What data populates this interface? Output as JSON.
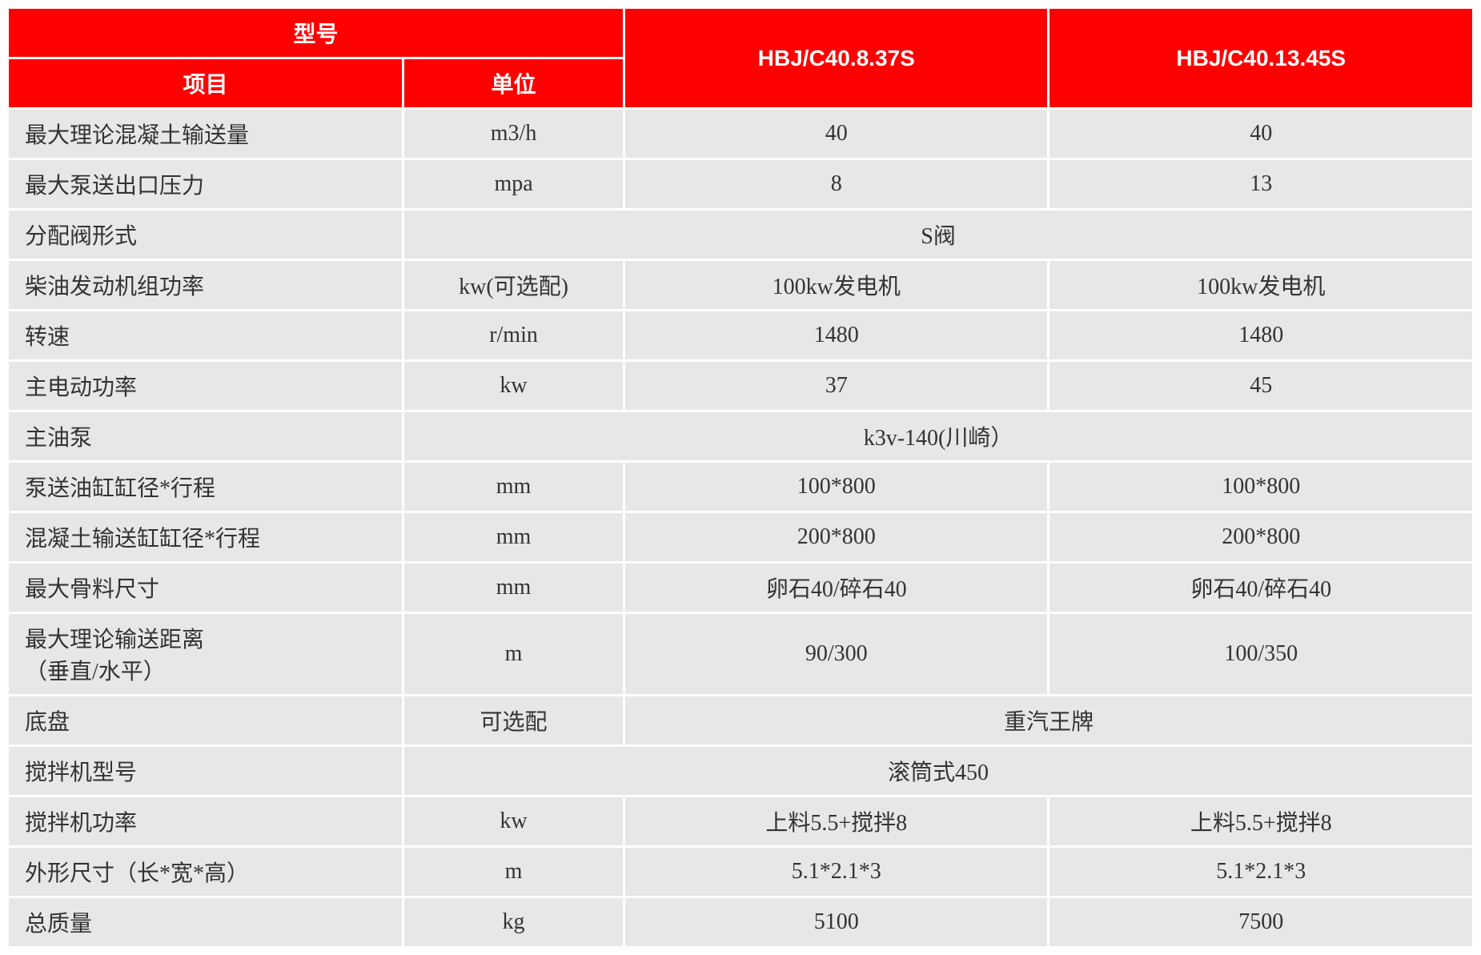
{
  "table": {
    "header": {
      "model_header": "型号",
      "item_header": "项目",
      "unit_header": "单位",
      "model1": "HBJ/C40.8.37S",
      "model2": "HBJ/C40.13.45S"
    },
    "colors": {
      "header_bg": "#ff0000",
      "header_text": "#ffffff",
      "data_bg": "#e7e7e7",
      "data_text": "#333333"
    },
    "rows": [
      {
        "label": "最大理论混凝土输送量",
        "unit": "m3/h",
        "v1": "40",
        "v2": "40"
      },
      {
        "label": "最大泵送出口压力",
        "unit": "mpa",
        "v1": "8",
        "v2": "13"
      },
      {
        "label": "分配阀形式",
        "unit": "",
        "merged": "S阀"
      },
      {
        "label": "柴油发动机组功率",
        "unit": "kw(可选配)",
        "v1": "100kw发电机",
        "v2": "100kw发电机"
      },
      {
        "label": "转速",
        "unit": "r/min",
        "v1": "1480",
        "v2": "1480"
      },
      {
        "label": "主电动功率",
        "unit": "kw",
        "v1": "37",
        "v2": "45"
      },
      {
        "label": "主油泵",
        "unit": "",
        "merged": "k3v-140(川崎）"
      },
      {
        "label": "泵送油缸缸径*行程",
        "unit": "mm",
        "v1": "100*800",
        "v2": "100*800"
      },
      {
        "label": "混凝土输送缸缸径*行程",
        "unit": "mm",
        "v1": "200*800",
        "v2": "200*800"
      },
      {
        "label": "最大骨料尺寸",
        "unit": "mm",
        "v1": "卵石40/碎石40",
        "v2": "卵石40/碎石40"
      },
      {
        "label": "最大理论输送距离\n（垂直/水平）",
        "unit": "m",
        "v1": "90/300",
        "v2": "100/350"
      },
      {
        "label": "底盘",
        "unit": "可选配",
        "merged2": "重汽王牌"
      },
      {
        "label": "搅拌机型号",
        "unit": "",
        "merged": "滚筒式450"
      },
      {
        "label": "搅拌机功率",
        "unit": "kw",
        "v1": "上料5.5+搅拌8",
        "v2": "上料5.5+搅拌8"
      },
      {
        "label": "外形尺寸（长*宽*高）",
        "unit": "m",
        "v1": "5.1*2.1*3",
        "v2": "5.1*2.1*3"
      },
      {
        "label": "总质量",
        "unit": "kg",
        "v1": "5100",
        "v2": "7500"
      }
    ]
  }
}
